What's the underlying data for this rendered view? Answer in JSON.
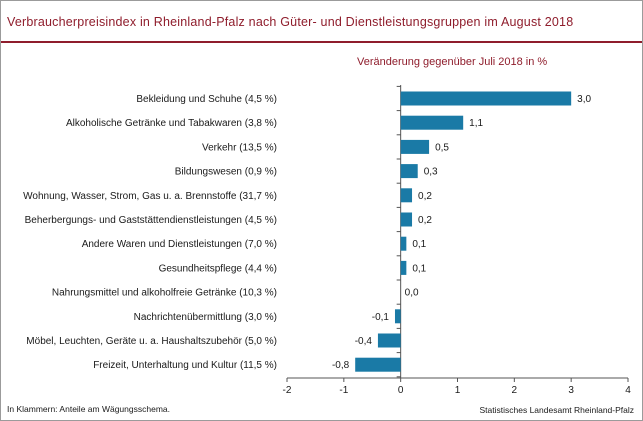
{
  "title": "Verbraucherpreisindex in Rheinland-Pfalz nach Güter- und Dienstleistungsgruppen im August 2018",
  "subtitle": "Veränderung gegenüber Juli 2018 in %",
  "note": "In Klammern: Anteile am Wägungsschema.",
  "source": "Statistisches Landesamt Rheinland-Pfalz",
  "colors": {
    "bar": "#1a7aa6",
    "title": "#8f1d2c",
    "axis": "#555555"
  },
  "chart_data": {
    "type": "bar",
    "orientation": "horizontal",
    "title": "Verbraucherpreisindex in Rheinland-Pfalz nach Güter- und Dienstleistungsgruppen im August 2018",
    "subtitle": "Veränderung gegenüber Juli 2018 in %",
    "categories": [
      "Bekleidung und Schuhe (4,5 %)",
      "Alkoholische Getränke und Tabakwaren (3,8 %)",
      "Verkehr (13,5 %)",
      "Bildungswesen (0,9 %)",
      "Wohnung, Wasser, Strom, Gas u. a. Brennstoffe (31,7 %)",
      "Beherbergungs- und Gaststättendienstleistungen (4,5 %)",
      "Andere Waren und Dienstleistungen (7,0 %)",
      "Gesundheitspflege (4,4 %)",
      "Nahrungsmittel und alkoholfreie Getränke (10,3 %)",
      "Nachrichtenübermittlung (3,0 %)",
      "Möbel, Leuchten, Geräte u. a. Haushaltszubehör (5,0 %)",
      "Freizeit, Unterhaltung und Kultur (11,5 %)"
    ],
    "values": [
      3.0,
      1.1,
      0.5,
      0.3,
      0.2,
      0.2,
      0.1,
      0.1,
      0.0,
      -0.1,
      -0.4,
      -0.8
    ],
    "value_labels": [
      "3,0",
      "1,1",
      "0,5",
      "0,3",
      "0,2",
      "0,2",
      "0,1",
      "0,1",
      "0,0",
      "-0,1",
      "-0,4",
      "-0,8"
    ],
    "xlim": [
      -2,
      4
    ],
    "xticks": [
      -2,
      -1,
      0,
      1,
      2,
      3,
      4
    ],
    "xtick_labels": [
      "-2",
      "-1",
      "0",
      "1",
      "2",
      "3",
      "4"
    ],
    "grid": false,
    "legend": "none"
  }
}
